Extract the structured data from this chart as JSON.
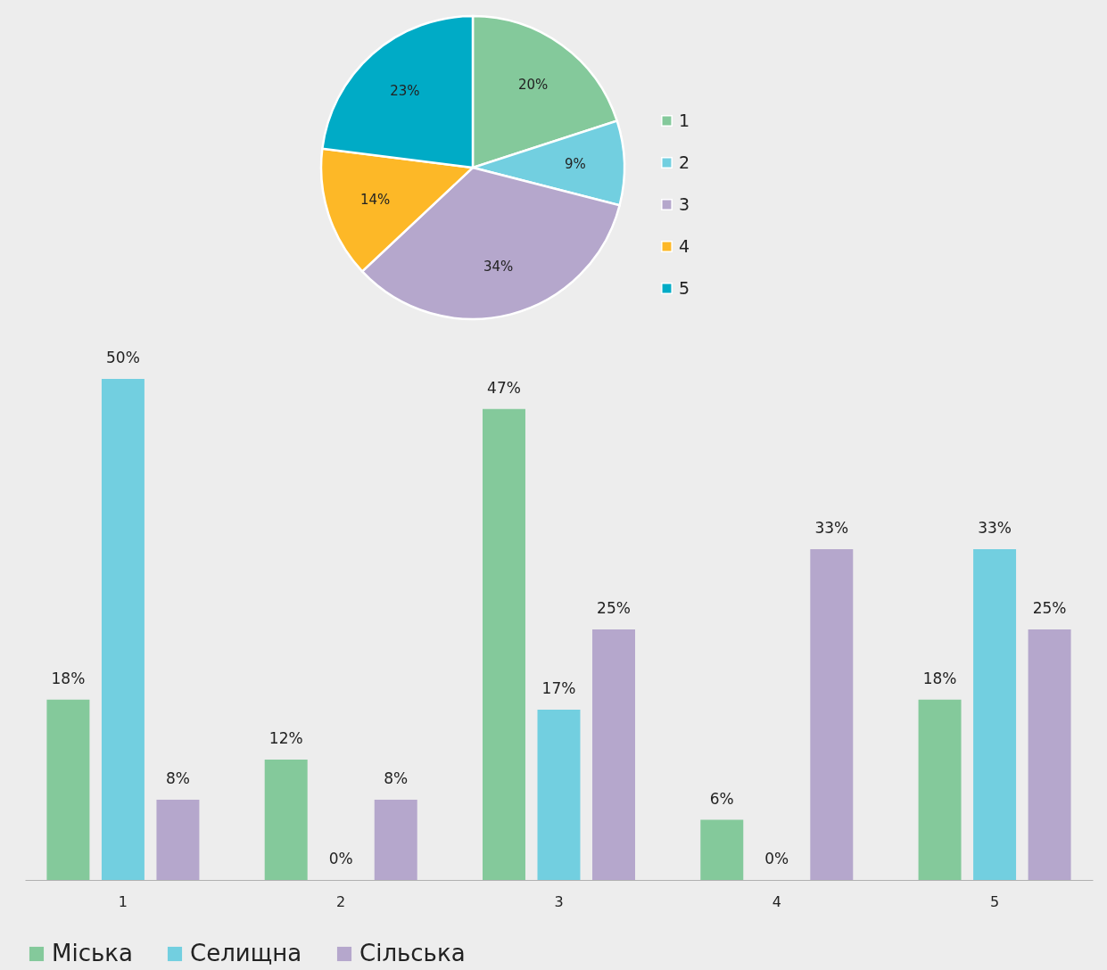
{
  "chart_data": [
    {
      "type": "pie",
      "categories": [
        "1",
        "2",
        "3",
        "4",
        "5"
      ],
      "values": [
        20,
        9,
        34,
        14,
        23
      ],
      "value_labels": [
        "20%",
        "9%",
        "34%",
        "14%",
        "23%"
      ],
      "colors": [
        "#84c99b",
        "#72cfe0",
        "#b5a7cc",
        "#fdb827",
        "#00abc6"
      ],
      "legend": "right"
    },
    {
      "type": "bar",
      "categories": [
        "1",
        "2",
        "3",
        "4",
        "5"
      ],
      "legend": "bottom",
      "tick_labels": "x",
      "series": [
        {
          "name": "Міська",
          "color": "#84c99b",
          "values": [
            18,
            12,
            47,
            6,
            18
          ],
          "value_labels": [
            "18%",
            "12%",
            "47%",
            "6%",
            "18%"
          ]
        },
        {
          "name": "Селищна",
          "color": "#72cfe0",
          "values": [
            50,
            0,
            17,
            0,
            33
          ],
          "value_labels": [
            "50%",
            "0%",
            "17%",
            "0%",
            "33%"
          ]
        },
        {
          "name": "Сільська",
          "color": "#b5a7cc",
          "values": [
            8,
            8,
            25,
            33,
            25
          ],
          "value_labels": [
            "8%",
            "8%",
            "25%",
            "33%",
            "25%"
          ]
        }
      ]
    }
  ]
}
